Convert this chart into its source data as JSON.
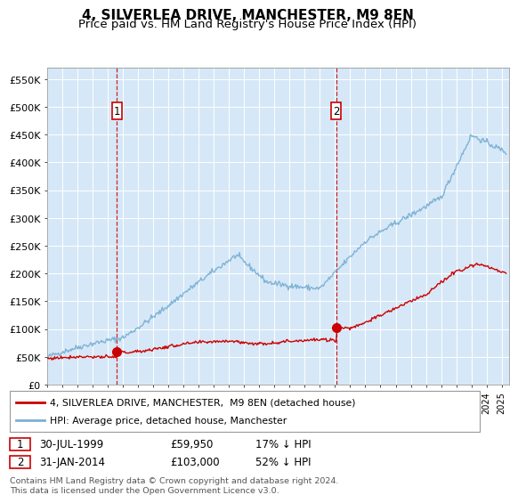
{
  "title": "4, SILVERLEA DRIVE, MANCHESTER, M9 8EN",
  "subtitle": "Price paid vs. HM Land Registry's House Price Index (HPI)",
  "bg_color": "#d6e8f7",
  "ylim": [
    0,
    570000
  ],
  "ytick_labels": [
    "£0",
    "£50K",
    "£100K",
    "£150K",
    "£200K",
    "£250K",
    "£300K",
    "£350K",
    "£400K",
    "£450K",
    "£500K",
    "£550K"
  ],
  "ytick_values": [
    0,
    50000,
    100000,
    150000,
    200000,
    250000,
    300000,
    350000,
    400000,
    450000,
    500000,
    550000
  ],
  "sale1": {
    "date_num": 1999.58,
    "price": 59950,
    "label": "1",
    "date_str": "30-JUL-1999",
    "pct": "17% ↓ HPI"
  },
  "sale2": {
    "date_num": 2014.08,
    "price": 103000,
    "label": "2",
    "date_str": "31-JAN-2014",
    "pct": "52% ↓ HPI"
  },
  "legend_house_label": "4, SILVERLEA DRIVE, MANCHESTER,  M9 8EN (detached house)",
  "legend_hpi_label": "HPI: Average price, detached house, Manchester",
  "footnote": "Contains HM Land Registry data © Crown copyright and database right 2024.\nThis data is licensed under the Open Government Licence v3.0.",
  "house_color": "#cc0000",
  "hpi_color": "#7ab0d4",
  "vline_color": "#cc0000",
  "grid_color": "#ffffff",
  "title_fontsize": 11,
  "subtitle_fontsize": 9.5,
  "tick_fontsize": 8,
  "anno_box_color": "#cc0000"
}
